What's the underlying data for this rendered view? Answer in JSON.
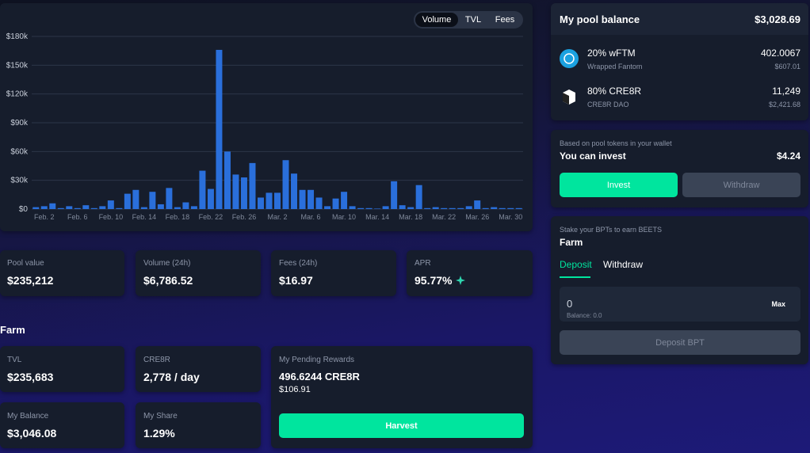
{
  "chart_data": {
    "type": "bar",
    "categories": [
      null,
      "Feb. 2",
      null,
      null,
      null,
      "Feb. 6",
      null,
      null,
      null,
      "Feb. 10",
      null,
      null,
      null,
      "Feb. 14",
      null,
      null,
      null,
      "Feb. 18",
      null,
      null,
      null,
      "Feb. 22",
      null,
      null,
      null,
      "Feb. 26",
      null,
      null,
      null,
      "Mar. 2",
      null,
      null,
      null,
      "Mar. 6",
      null,
      null,
      null,
      "Mar. 10",
      null,
      null,
      null,
      "Mar. 14",
      null,
      null,
      null,
      "Mar. 18",
      null,
      null,
      null,
      "Mar. 22",
      null,
      null,
      null,
      "Mar. 26",
      null,
      null,
      null,
      "Mar. 30",
      null
    ],
    "values": [
      2000,
      3000,
      6000,
      1000,
      3000,
      1000,
      4000,
      1000,
      3000,
      9000,
      1000,
      16000,
      20000,
      2000,
      18000,
      5000,
      22000,
      2000,
      7000,
      3000,
      40000,
      21000,
      166000,
      60000,
      36000,
      33000,
      48000,
      12000,
      17000,
      17000,
      51000,
      37000,
      20000,
      20000,
      12000,
      3000,
      11000,
      18000,
      3000,
      1000,
      1000,
      500,
      3000,
      29000,
      4000,
      2000,
      25000,
      1000,
      2000,
      1000,
      1000,
      1000,
      3000,
      9000,
      1000,
      2000,
      1000,
      1000,
      1000
    ],
    "color": "#2a6fdb",
    "ylim": [
      0,
      180000
    ],
    "yticks": [
      {
        "value": 0,
        "label": "$0"
      },
      {
        "value": 30000,
        "label": "$30k"
      },
      {
        "value": 60000,
        "label": "$60k"
      },
      {
        "value": 90000,
        "label": "$90k"
      },
      {
        "value": 120000,
        "label": "$120k"
      },
      {
        "value": 150000,
        "label": "$150k"
      },
      {
        "value": 180000,
        "label": "$180k"
      }
    ],
    "grid": true
  },
  "chart_toggle": [
    "Volume",
    "TVL",
    "Fees"
  ],
  "pool_stats": [
    {
      "label": "Pool value",
      "value": "$235,212"
    },
    {
      "label": "Volume (24h)",
      "value": "$6,786.52"
    },
    {
      "label": "Fees (24h)",
      "value": "$16.97"
    },
    {
      "label": "APR",
      "value": "95.77%"
    }
  ],
  "farm": {
    "title": "Farm",
    "stats": [
      {
        "label": "TVL",
        "value": "$235,683"
      },
      {
        "label": "CRE8R",
        "value": "2,778 / day"
      },
      {
        "label": "My Balance",
        "value": "$3,046.08"
      },
      {
        "label": "My Share",
        "value": "1.29%"
      }
    ],
    "pending": {
      "label": "My Pending Rewards",
      "amount": "496.6244 CRE8R",
      "usd": "$106.91"
    },
    "harvest": "Harvest"
  },
  "pool_balance": {
    "title": "My pool balance",
    "total": "$3,028.69",
    "tokens": [
      {
        "share": "20% wFTM",
        "name": "Wrapped Fantom",
        "amount": "402.0067",
        "usd": "$607.01"
      },
      {
        "share": "80% CRE8R",
        "name": "CRE8R DAO",
        "amount": "11,249",
        "usd": "$2,421.68"
      }
    ]
  },
  "invest": {
    "note": "Based on pool tokens in your wallet",
    "label": "You can invest",
    "amount": "$4.24",
    "invest": "Invest",
    "withdraw": "Withdraw"
  },
  "stake": {
    "note": "Stake your BPTs to earn BEETS",
    "title": "Farm",
    "tabs": [
      "Deposit",
      "Withdraw"
    ],
    "input": "0",
    "max": "Max",
    "balance": "Balance: 0.0",
    "button": "Deposit BPT"
  }
}
